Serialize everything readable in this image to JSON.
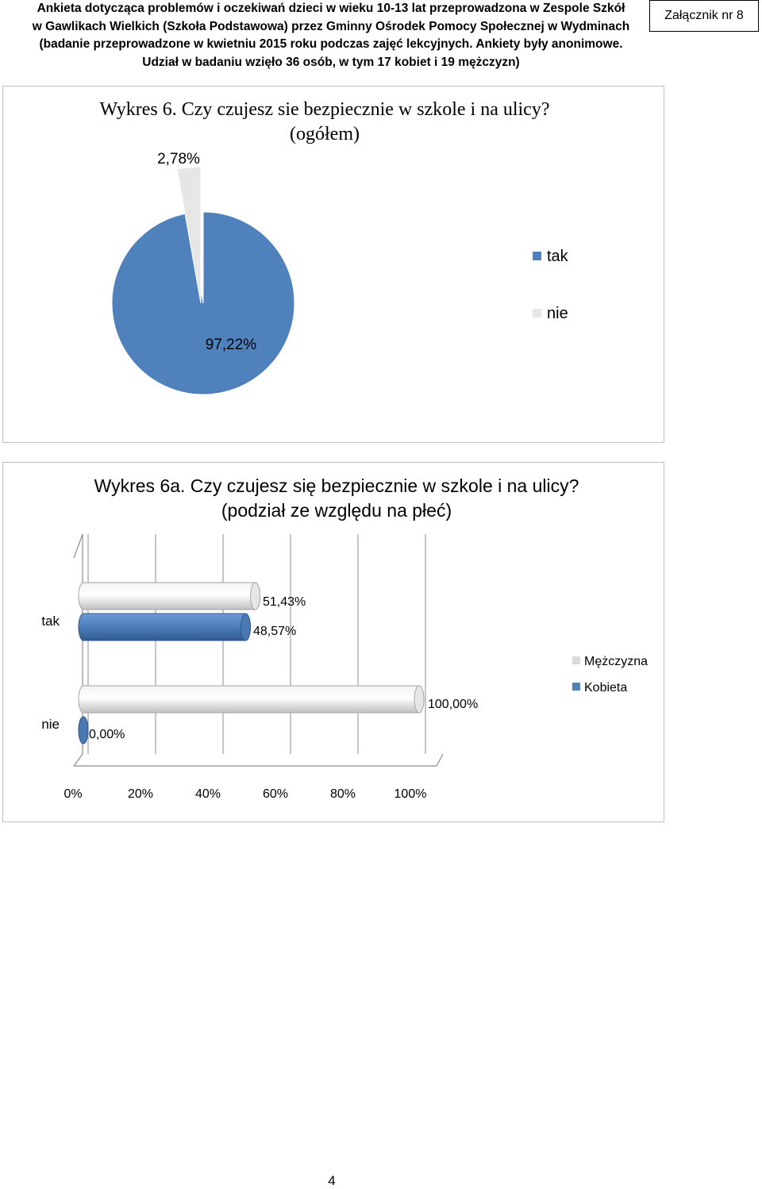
{
  "header": {
    "lines": [
      "Ankieta dotycząca problemów i oczekiwań dzieci w wieku 10-13 lat przeprowadzona w Zespole Szkół",
      "w Gawlikach Wielkich (Szkoła Podstawowa) przez Gminny Ośrodek Pomocy Społecznej w Wydminach",
      "(badanie przeprowadzone w kwietniu 2015 roku podczas zajęć lekcyjnych. Ankiety były anonimowe.",
      "Udział w badaniu wzięło 36 osób, w tym 17 kobiet i 19 mężczyzn)"
    ],
    "annex_label": "Załącznik nr 8"
  },
  "page_number": "4",
  "colors": {
    "kobieta": "#4f81bd",
    "mezczyzna": "#d9d9d9",
    "tak": "#4f81bd",
    "nie": "#e6e6e6"
  },
  "chart_data": [
    {
      "type": "pie",
      "title_lines": [
        "Wykres 6. Czy czujesz sie bezpiecznie w szkole i na ulicy?",
        "(ogółem)"
      ],
      "categories": [
        "tak",
        "nie"
      ],
      "values": [
        97.22,
        2.78
      ],
      "data_labels": [
        "97,22%",
        "2,78%"
      ],
      "legend": [
        "tak",
        "nie"
      ],
      "legend_position": "right"
    },
    {
      "type": "bar",
      "orientation": "horizontal",
      "title_lines": [
        "Wykres 6a. Czy czujesz się bezpiecznie w szkole i na ulicy?",
        "(podział ze względu na płeć)"
      ],
      "categories": [
        "tak",
        "nie"
      ],
      "series": [
        {
          "name": "Mężczyzna",
          "values": [
            51.43,
            100.0
          ],
          "data_labels": [
            "51,43%",
            "100,00%"
          ]
        },
        {
          "name": "Kobieta",
          "values": [
            48.57,
            0.0
          ],
          "data_labels": [
            "48,57%",
            "0,00%"
          ]
        }
      ],
      "x_ticks": [
        "0%",
        "20%",
        "40%",
        "60%",
        "80%",
        "100%"
      ],
      "xlim": [
        0,
        100
      ],
      "legend": [
        "Mężczyzna",
        "Kobieta"
      ],
      "legend_position": "right",
      "grid": true
    }
  ]
}
